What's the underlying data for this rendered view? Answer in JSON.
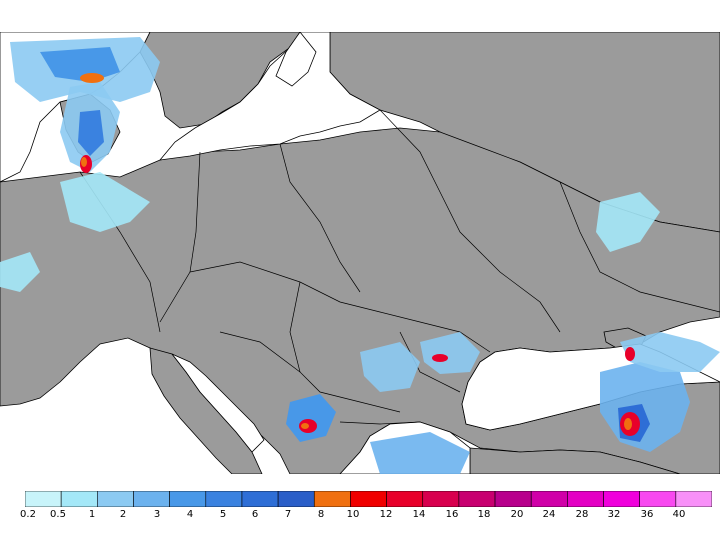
{
  "map": {
    "background": "#ffffff",
    "land_color": "#9b9b9b",
    "sea_color": "#ffffff",
    "border_color": "#000000"
  },
  "legend": {
    "colors": [
      "#c8f4fa",
      "#a4e8f8",
      "#8ccaf2",
      "#6cb2ee",
      "#4898e8",
      "#3a82e0",
      "#2e6ed6",
      "#2a5ec8",
      "#f07010",
      "#f00000",
      "#e8002a",
      "#d8004e",
      "#c80070",
      "#b8008c",
      "#d000a8",
      "#e400c4",
      "#f000dc",
      "#f848f0",
      "#f890f8"
    ],
    "labels": [
      "0.2",
      "0.5",
      "1",
      "2",
      "3",
      "4",
      "5",
      "6",
      "7",
      "8",
      "10",
      "12",
      "14",
      "16",
      "18",
      "20",
      "24",
      "28",
      "32",
      "36",
      "40"
    ]
  }
}
